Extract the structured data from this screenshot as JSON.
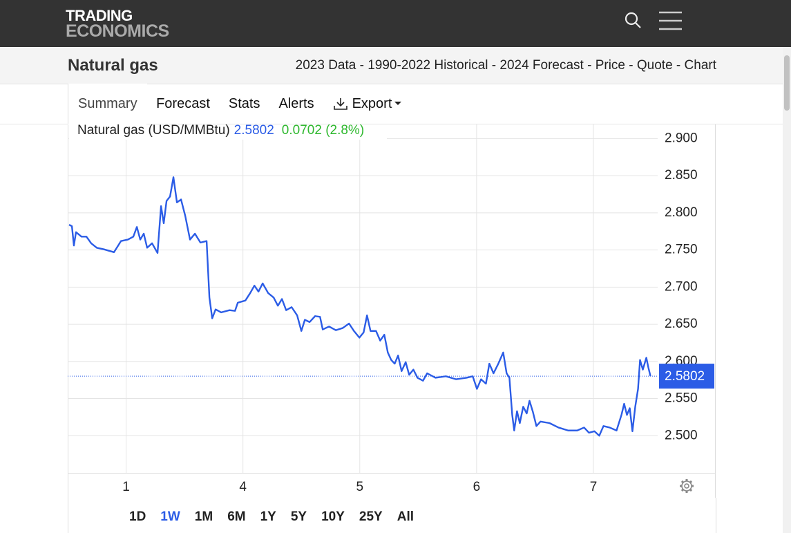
{
  "header": {
    "logo_top": "TRADING",
    "logo_bottom": "ECONOMICS"
  },
  "subheader": {
    "title": "Natural gas",
    "nav": "2023 Data - 1990-2022 Historical - 2024 Forecast - Price - Quote - Chart"
  },
  "tabs": [
    "Summary",
    "Forecast",
    "Stats",
    "Alerts",
    "Export"
  ],
  "ranges": [
    "1D",
    "1W",
    "1M",
    "6M",
    "1Y",
    "5Y",
    "10Y",
    "25Y",
    "All"
  ],
  "active_range": "1W",
  "chart_data": {
    "type": "line",
    "change": "0.0702 (2.8%)",
    "grid": true,
    "xlim": [
      0.5,
      5.55
    ],
    "xticks": [
      {
        "value": 1,
        "label": "1"
      },
      {
        "value": 2,
        "label": "4"
      },
      {
        "value": 3,
        "label": "5"
      },
      {
        "value": 4,
        "label": "6"
      },
      {
        "value": 5,
        "label": "7"
      }
    ],
    "ylim": [
      2.45,
      2.919
    ],
    "yticks": [
      {
        "value": 2.5,
        "label": "2.500"
      },
      {
        "value": 2.55,
        "label": "2.550"
      },
      {
        "value": 2.6,
        "label": "2.600"
      },
      {
        "value": 2.65,
        "label": "2.650"
      },
      {
        "value": 2.7,
        "label": "2.700"
      },
      {
        "value": 2.75,
        "label": "2.750"
      },
      {
        "value": 2.8,
        "label": "2.800"
      },
      {
        "value": 2.85,
        "label": "2.850"
      },
      {
        "value": 2.9,
        "label": "2.900"
      }
    ],
    "x": [
      0.512,
      0.536,
      0.553,
      0.571,
      0.618,
      0.66,
      0.701,
      0.749,
      0.808,
      0.896,
      0.956,
      1.015,
      1.062,
      1.092,
      1.121,
      1.151,
      1.18,
      1.222,
      1.269,
      1.299,
      1.322,
      1.346,
      1.376,
      1.405,
      1.435,
      1.47,
      1.506,
      1.547,
      1.589,
      1.636,
      1.689,
      1.713,
      1.737,
      1.766,
      1.814,
      1.885,
      1.932,
      1.956,
      2.021,
      2.062,
      2.098,
      2.133,
      2.169,
      2.216,
      2.263,
      2.299,
      2.334,
      2.37,
      2.417,
      2.464,
      2.5,
      2.53,
      2.571,
      2.618,
      2.66,
      2.683,
      2.737,
      2.796,
      2.855,
      2.908,
      2.95,
      2.997,
      3.033,
      3.062,
      3.092,
      3.139,
      3.175,
      3.21,
      3.24,
      3.269,
      3.299,
      3.328,
      3.358,
      3.393,
      3.423,
      3.459,
      3.494,
      3.541,
      3.577,
      3.648,
      3.737,
      3.825,
      3.914,
      3.967,
      4.003,
      4.038,
      4.08,
      4.109,
      4.145,
      4.186,
      4.228,
      4.257,
      4.281,
      4.305,
      4.322,
      4.346,
      4.37,
      4.399,
      4.429,
      4.453,
      4.482,
      4.512,
      4.547,
      4.624,
      4.701,
      4.784,
      4.861,
      4.92,
      4.962,
      5.009,
      5.05,
      5.086,
      5.139,
      5.198,
      5.24,
      5.263,
      5.287,
      5.311,
      5.334,
      5.358,
      5.382,
      5.399,
      5.423,
      5.453,
      5.47,
      5.488
    ],
    "series": [
      {
        "name": "Natural gas (USD/MMBtu)",
        "color": "#2b5ce6",
        "values": [
          2.784,
          2.782,
          2.756,
          2.774,
          2.768,
          2.768,
          2.759,
          2.753,
          2.751,
          2.747,
          2.762,
          2.764,
          2.768,
          2.781,
          2.764,
          2.772,
          2.753,
          2.759,
          2.746,
          2.809,
          2.786,
          2.816,
          2.822,
          2.848,
          2.814,
          2.818,
          2.796,
          2.764,
          2.772,
          2.76,
          2.762,
          2.686,
          2.658,
          2.67,
          2.666,
          2.669,
          2.668,
          2.679,
          2.682,
          2.692,
          2.702,
          2.694,
          2.705,
          2.692,
          2.686,
          2.675,
          2.684,
          2.669,
          2.673,
          2.662,
          2.641,
          2.656,
          2.653,
          2.661,
          2.66,
          2.643,
          2.647,
          2.642,
          2.645,
          2.651,
          2.641,
          2.632,
          2.639,
          2.662,
          2.641,
          2.641,
          2.628,
          2.636,
          2.612,
          2.602,
          2.597,
          2.608,
          2.587,
          2.599,
          2.582,
          2.589,
          2.578,
          2.574,
          2.584,
          2.578,
          2.58,
          2.576,
          2.578,
          2.58,
          2.563,
          2.576,
          2.57,
          2.597,
          2.584,
          2.597,
          2.612,
          2.584,
          2.578,
          2.528,
          2.507,
          2.533,
          2.517,
          2.539,
          2.53,
          2.547,
          2.532,
          2.513,
          2.519,
          2.517,
          2.511,
          2.507,
          2.507,
          2.511,
          2.504,
          2.506,
          2.5,
          2.513,
          2.511,
          2.507,
          2.528,
          2.543,
          2.528,
          2.537,
          2.506,
          2.539,
          2.563,
          2.602,
          2.589,
          2.605,
          2.592,
          2.5802
        ]
      }
    ]
  }
}
